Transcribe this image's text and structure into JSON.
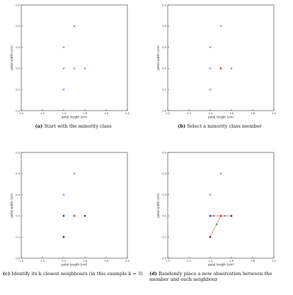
{
  "colors": {
    "minority_point": "#8a8ff0",
    "selected_member": "#e01515",
    "neighbour": "#1a1a8a",
    "synthetic": "#2e8b2e",
    "link_line": "#e01515",
    "axes": "#000000"
  },
  "panels": [
    {
      "id": "a",
      "caption_label": "(a)",
      "caption_text": "Start with the minority class"
    },
    {
      "id": "b",
      "caption_label": "(b)",
      "caption_text": "Select a minority class member"
    },
    {
      "id": "c",
      "caption_label": "(c)",
      "caption_text": "Identify its k closest neighbours (in this example k = 3)"
    },
    {
      "id": "d",
      "caption_label": "(d)",
      "caption_text": "Randomly place a new observation between the member and each neighbour"
    }
  ],
  "chart_data": [
    {
      "type": "scatter",
      "panel": "a",
      "xlabel": "petal length (cm)",
      "ylabel": "petal width (cm)",
      "xlim": [
        1.0,
        2.0
      ],
      "ylim": [
        0.0,
        0.5
      ],
      "xticks": [
        "1.0",
        "1.2",
        "1.4",
        "1.6",
        "1.8",
        "2.0"
      ],
      "yticks": [
        "0.0",
        "0.1",
        "0.2",
        "0.3",
        "0.4",
        "0.5"
      ],
      "grid": false,
      "points": [
        {
          "x": 1.5,
          "y": 0.4,
          "role": "minority"
        },
        {
          "x": 1.4,
          "y": 0.3,
          "role": "minority"
        },
        {
          "x": 1.4,
          "y": 0.2,
          "role": "minority"
        },
        {
          "x": 1.5,
          "y": 0.2,
          "role": "minority"
        },
        {
          "x": 1.6,
          "y": 0.2,
          "role": "minority"
        },
        {
          "x": 1.4,
          "y": 0.1,
          "role": "minority"
        }
      ],
      "lines": []
    },
    {
      "type": "scatter",
      "panel": "b",
      "xlabel": "petal length (cm)",
      "ylabel": "petal width (cm)",
      "xlim": [
        1.0,
        2.0
      ],
      "ylim": [
        0.0,
        0.5
      ],
      "xticks": [
        "1.0",
        "1.2",
        "1.4",
        "1.6",
        "1.8",
        "2.0"
      ],
      "yticks": [
        "0.0",
        "0.1",
        "0.2",
        "0.3",
        "0.4",
        "0.5"
      ],
      "grid": false,
      "points": [
        {
          "x": 1.5,
          "y": 0.4,
          "role": "minority"
        },
        {
          "x": 1.4,
          "y": 0.3,
          "role": "minority"
        },
        {
          "x": 1.4,
          "y": 0.2,
          "role": "minority"
        },
        {
          "x": 1.5,
          "y": 0.2,
          "role": "selected"
        },
        {
          "x": 1.6,
          "y": 0.2,
          "role": "minority"
        },
        {
          "x": 1.4,
          "y": 0.1,
          "role": "minority"
        }
      ],
      "lines": []
    },
    {
      "type": "scatter",
      "panel": "c",
      "xlabel": "petal length (cm)",
      "ylabel": "petal width (cm)",
      "xlim": [
        1.0,
        2.0
      ],
      "ylim": [
        0.0,
        0.5
      ],
      "xticks": [
        "1.0",
        "1.2",
        "1.4",
        "1.6",
        "1.8",
        "2.0"
      ],
      "yticks": [
        "0.0",
        "0.1",
        "0.2",
        "0.3",
        "0.4",
        "0.5"
      ],
      "grid": false,
      "points": [
        {
          "x": 1.5,
          "y": 0.4,
          "role": "minority"
        },
        {
          "x": 1.4,
          "y": 0.3,
          "role": "minority"
        },
        {
          "x": 1.4,
          "y": 0.2,
          "role": "neighbour"
        },
        {
          "x": 1.5,
          "y": 0.2,
          "role": "selected"
        },
        {
          "x": 1.6,
          "y": 0.2,
          "role": "neighbour"
        },
        {
          "x": 1.4,
          "y": 0.1,
          "role": "neighbour"
        }
      ],
      "lines": []
    },
    {
      "type": "scatter",
      "panel": "d",
      "xlabel": "petal length (cm)",
      "ylabel": "petal width (cm)",
      "xlim": [
        1.0,
        2.0
      ],
      "ylim": [
        0.0,
        0.5
      ],
      "xticks": [
        "1.0",
        "1.2",
        "1.4",
        "1.6",
        "1.8",
        "2.0"
      ],
      "yticks": [
        "0.0",
        "0.1",
        "0.2",
        "0.3",
        "0.4",
        "0.5"
      ],
      "grid": false,
      "points": [
        {
          "x": 1.5,
          "y": 0.4,
          "role": "minority"
        },
        {
          "x": 1.4,
          "y": 0.3,
          "role": "minority"
        },
        {
          "x": 1.4,
          "y": 0.2,
          "role": "neighbour"
        },
        {
          "x": 1.5,
          "y": 0.2,
          "role": "selected"
        },
        {
          "x": 1.6,
          "y": 0.2,
          "role": "neighbour"
        },
        {
          "x": 1.4,
          "y": 0.1,
          "role": "neighbour"
        },
        {
          "x": 1.43,
          "y": 0.2,
          "role": "synthetic"
        },
        {
          "x": 1.54,
          "y": 0.2,
          "role": "synthetic"
        },
        {
          "x": 1.46,
          "y": 0.16,
          "role": "synthetic"
        }
      ],
      "lines": [
        {
          "x1": 1.5,
          "y1": 0.2,
          "x2": 1.4,
          "y2": 0.2
        },
        {
          "x1": 1.5,
          "y1": 0.2,
          "x2": 1.6,
          "y2": 0.2
        },
        {
          "x1": 1.5,
          "y1": 0.2,
          "x2": 1.4,
          "y2": 0.1
        }
      ]
    }
  ]
}
